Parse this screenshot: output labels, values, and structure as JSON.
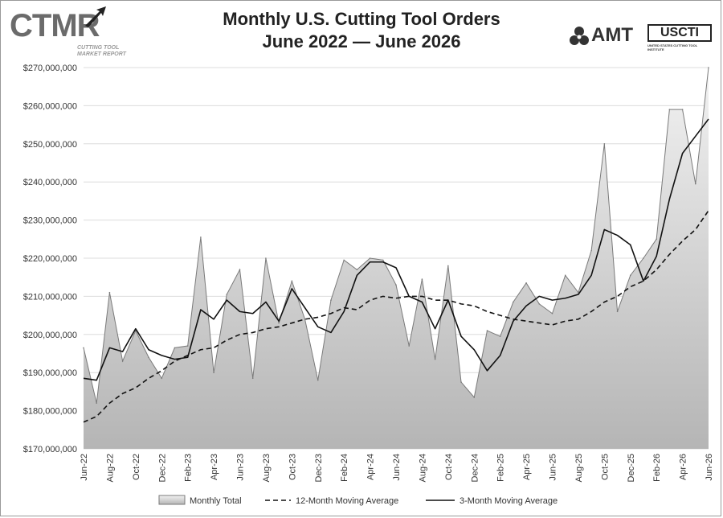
{
  "header": {
    "title_line1": "Monthly U.S. Cutting Tool Orders",
    "title_line2": "June 2022 — June 2026"
  },
  "logos": {
    "left_mark": "CTMR",
    "left_sub": "CUTTING TOOL MARKET REPORT",
    "right_amt": "AMT",
    "right_uscti": "USCTI",
    "right_uscti_sub": "UNITED STATES CUTTING TOOL INSTITUTE"
  },
  "chart_data": {
    "type": "area",
    "title": "Monthly U.S. Cutting Tool Orders",
    "subtitle": "June 2022 — June 2026",
    "xlabel": "",
    "ylabel": "",
    "ylim": [
      170000000,
      270000000
    ],
    "yticks": [
      170000000,
      180000000,
      190000000,
      200000000,
      210000000,
      220000000,
      230000000,
      240000000,
      250000000,
      260000000,
      270000000
    ],
    "ytick_labels": [
      "$170,000,000",
      "$180,000,000",
      "$190,000,000",
      "$200,000,000",
      "$210,000,000",
      "$220,000,000",
      "$230,000,000",
      "$240,000,000",
      "$250,000,000",
      "$260,000,000",
      "$270,000,000"
    ],
    "xtick_labels": [
      "Jun-22",
      "Aug-22",
      "Oct-22",
      "Dec-22",
      "Feb-23",
      "Apr-23",
      "Jun-23",
      "Aug-23",
      "Oct-23",
      "Dec-23",
      "Feb-24",
      "Apr-24",
      "Jun-24",
      "Aug-24",
      "Oct-24",
      "Dec-24",
      "Feb-25",
      "Apr-25",
      "Jun-25",
      "Aug-25",
      "Oct-25",
      "Dec-25",
      "Feb-26",
      "Apr-26",
      "Jun-26"
    ],
    "x": [
      "Jun-22",
      "Jul-22",
      "Aug-22",
      "Sep-22",
      "Oct-22",
      "Nov-22",
      "Dec-22",
      "Jan-23",
      "Feb-23",
      "Mar-23",
      "Apr-23",
      "May-23",
      "Jun-23",
      "Jul-23",
      "Aug-23",
      "Sep-23",
      "Oct-23",
      "Nov-23",
      "Dec-23",
      "Jan-24",
      "Feb-24",
      "Mar-24",
      "Apr-24",
      "May-24",
      "Jun-24",
      "Jul-24",
      "Aug-24",
      "Sep-24",
      "Oct-24",
      "Nov-24",
      "Dec-24",
      "Jan-25",
      "Feb-25",
      "Mar-25",
      "Apr-25",
      "May-25",
      "Jun-25",
      "Jul-25",
      "Aug-25",
      "Sep-25",
      "Oct-25",
      "Nov-25",
      "Dec-25",
      "Jan-26",
      "Feb-26",
      "Mar-26",
      "Apr-26",
      "May-26",
      "Jun-26"
    ],
    "series": [
      {
        "name": "Monthly Total",
        "style": "area",
        "values": [
          196500000,
          182000000,
          211000000,
          193000000,
          201000000,
          194000000,
          188500000,
          196500000,
          197000000,
          225500000,
          190000000,
          210500000,
          217000000,
          188500000,
          220000000,
          203000000,
          214000000,
          204000000,
          188000000,
          209000000,
          219500000,
          217000000,
          220000000,
          219500000,
          213000000,
          197000000,
          214500000,
          193500000,
          218000000,
          187500000,
          183500000,
          201000000,
          199500000,
          208500000,
          213500000,
          208000000,
          205500000,
          215500000,
          211000000,
          222000000,
          250000000,
          206000000,
          215500000,
          220000000,
          225000000,
          259000000,
          259000000,
          239500000,
          270000000
        ]
      },
      {
        "name": "12-Month Moving Average",
        "style": "dashed",
        "values": [
          177000000,
          178500000,
          182000000,
          184500000,
          186000000,
          188500000,
          190500000,
          193000000,
          194500000,
          196000000,
          196500000,
          198500000,
          200000000,
          200500000,
          201500000,
          202000000,
          203000000,
          204000000,
          204500000,
          205500000,
          207000000,
          206500000,
          209000000,
          210000000,
          209500000,
          210000000,
          210000000,
          209000000,
          209000000,
          208000000,
          207500000,
          206000000,
          205000000,
          204000000,
          203500000,
          203000000,
          202500000,
          203500000,
          204000000,
          206000000,
          208500000,
          210000000,
          212500000,
          214000000,
          217000000,
          221000000,
          224500000,
          227500000,
          232500000
        ]
      },
      {
        "name": "3-Month Moving Average",
        "style": "solid",
        "values": [
          188500000,
          188000000,
          196500000,
          195500000,
          201500000,
          196000000,
          194500000,
          193500000,
          194000000,
          206500000,
          204000000,
          209000000,
          206000000,
          205500000,
          208500000,
          203500000,
          212000000,
          207000000,
          202000000,
          200500000,
          206000000,
          215500000,
          219000000,
          219000000,
          217500000,
          210000000,
          208500000,
          201500000,
          209000000,
          199500000,
          196000000,
          190500000,
          194500000,
          203500000,
          207500000,
          210000000,
          209000000,
          209500000,
          210500000,
          215500000,
          227500000,
          226000000,
          223500000,
          214000000,
          220500000,
          235500000,
          247500000,
          252000000,
          256500000
        ]
      }
    ],
    "legend": {
      "position": "bottom",
      "items": [
        "Monthly Total",
        "12-Month Moving Average",
        "3-Month Moving Average"
      ]
    },
    "grid": true
  },
  "colors": {
    "area_fill_top": "#f2f2f2",
    "area_fill_bottom": "#b5b5b5",
    "area_edge": "#7a7a7a",
    "line": "#111111",
    "grid": "#dcdcdc",
    "text": "#333333"
  }
}
